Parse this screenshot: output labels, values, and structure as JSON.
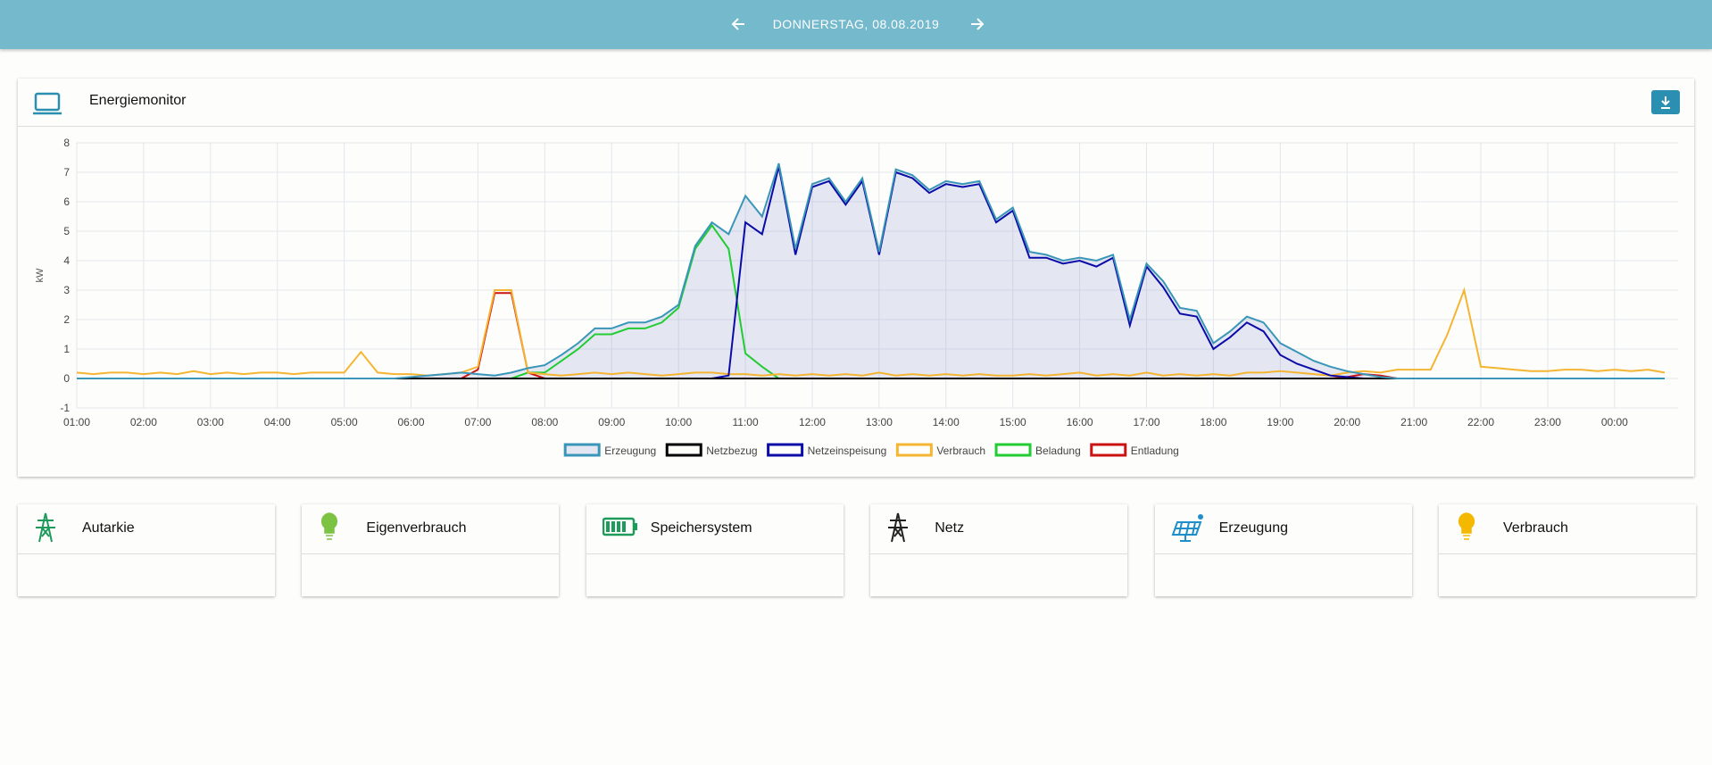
{
  "header": {
    "date": "DONNERSTAG, 08.08.2019"
  },
  "monitor": {
    "title": "Energiemonitor"
  },
  "chart_data": {
    "type": "line",
    "ylabel": "kW",
    "grid": true,
    "xlim": [
      1,
      24.95
    ],
    "ylim": [
      -1,
      8
    ],
    "yticks": [
      -1,
      0,
      1,
      2,
      3,
      4,
      5,
      6,
      7,
      8
    ],
    "xticks": [
      {
        "value": 1,
        "label": "01:00"
      },
      {
        "value": 2,
        "label": "02:00"
      },
      {
        "value": 3,
        "label": "03:00"
      },
      {
        "value": 4,
        "label": "04:00"
      },
      {
        "value": 5,
        "label": "05:00"
      },
      {
        "value": 6,
        "label": "06:00"
      },
      {
        "value": 7,
        "label": "07:00"
      },
      {
        "value": 8,
        "label": "08:00"
      },
      {
        "value": 9,
        "label": "09:00"
      },
      {
        "value": 10,
        "label": "10:00"
      },
      {
        "value": 11,
        "label": "11:00"
      },
      {
        "value": 12,
        "label": "12:00"
      },
      {
        "value": 13,
        "label": "13:00"
      },
      {
        "value": 14,
        "label": "14:00"
      },
      {
        "value": 15,
        "label": "15:00"
      },
      {
        "value": 16,
        "label": "16:00"
      },
      {
        "value": 17,
        "label": "17:00"
      },
      {
        "value": 18,
        "label": "18:00"
      },
      {
        "value": 19,
        "label": "19:00"
      },
      {
        "value": 20,
        "label": "20:00"
      },
      {
        "value": 21,
        "label": "21:00"
      },
      {
        "value": 22,
        "label": "22:00"
      },
      {
        "value": 23,
        "label": "23:00"
      },
      {
        "value": 24,
        "label": "00:00"
      }
    ],
    "x": [
      1,
      1.25,
      1.5,
      1.75,
      2,
      2.25,
      2.5,
      2.75,
      3,
      3.25,
      3.5,
      3.75,
      4,
      4.25,
      4.5,
      4.75,
      5,
      5.25,
      5.5,
      5.75,
      6,
      6.25,
      6.5,
      6.75,
      7,
      7.25,
      7.5,
      7.75,
      8,
      8.25,
      8.5,
      8.75,
      9,
      9.25,
      9.5,
      9.75,
      10,
      10.25,
      10.5,
      10.75,
      11,
      11.25,
      11.5,
      11.75,
      12,
      12.25,
      12.5,
      12.75,
      13,
      13.25,
      13.5,
      13.75,
      14,
      14.25,
      14.5,
      14.75,
      15,
      15.25,
      15.5,
      15.75,
      16,
      16.25,
      16.5,
      16.75,
      17,
      17.25,
      17.5,
      17.75,
      18,
      18.25,
      18.5,
      18.75,
      19,
      19.25,
      19.5,
      19.75,
      20,
      20.25,
      20.5,
      20.75,
      21,
      21.25,
      21.5,
      21.75,
      22,
      22.25,
      22.5,
      22.75,
      23,
      23.25,
      23.5,
      23.75,
      24,
      24.25,
      24.5,
      24.75
    ],
    "series": [
      {
        "name": "Erzeugung",
        "color": "#3a96b8",
        "fill": "rgba(90,110,190,0.15)",
        "values": [
          0,
          0,
          0,
          0,
          0,
          0,
          0,
          0,
          0,
          0,
          0,
          0,
          0,
          0,
          0,
          0,
          0,
          0,
          0,
          0,
          0.05,
          0.1,
          0.15,
          0.2,
          0.15,
          0.1,
          0.2,
          0.35,
          0.45,
          0.8,
          1.2,
          1.7,
          1.7,
          1.9,
          1.9,
          2.1,
          2.5,
          4.5,
          5.3,
          4.9,
          6.2,
          5.5,
          7.3,
          4.4,
          6.6,
          6.8,
          6.0,
          6.8,
          4.3,
          7.1,
          6.9,
          6.4,
          6.7,
          6.6,
          6.7,
          5.4,
          5.8,
          4.3,
          4.2,
          4.0,
          4.1,
          4.0,
          4.2,
          2.0,
          3.9,
          3.3,
          2.4,
          2.3,
          1.2,
          1.6,
          2.1,
          1.9,
          1.2,
          0.9,
          0.6,
          0.4,
          0.25,
          0.15,
          0.05,
          0,
          0,
          0,
          0,
          0,
          0,
          0,
          0,
          0,
          0,
          0,
          0,
          0,
          0,
          0,
          0,
          0
        ]
      },
      {
        "name": "Netzbezug",
        "color": "#000000",
        "values": [
          0,
          0,
          0,
          0,
          0,
          0,
          0,
          0,
          0,
          0,
          0,
          0,
          0,
          0,
          0,
          0,
          0,
          0,
          0,
          0,
          0,
          0,
          0,
          0,
          0,
          0,
          0,
          0,
          0,
          0,
          0,
          0,
          0,
          0,
          0,
          0,
          0,
          0,
          0,
          0,
          0,
          0,
          0,
          0,
          0,
          0,
          0,
          0,
          0,
          0,
          0,
          0,
          0,
          0,
          0,
          0,
          0,
          0,
          0,
          0,
          0,
          0,
          0,
          0,
          0,
          0,
          0,
          0,
          0,
          0,
          0,
          0,
          0,
          0,
          0,
          0,
          0,
          0,
          0,
          0,
          0,
          0,
          0,
          0,
          0,
          0,
          0,
          0,
          0,
          0,
          0,
          0,
          0,
          0,
          0,
          0
        ]
      },
      {
        "name": "Netzeinspeisung",
        "color": "#0b0ba8",
        "values": [
          0,
          0,
          0,
          0,
          0,
          0,
          0,
          0,
          0,
          0,
          0,
          0,
          0,
          0,
          0,
          0,
          0,
          0,
          0,
          0,
          0,
          0,
          0,
          0,
          0,
          0,
          0,
          0,
          0,
          0,
          0,
          0,
          0,
          0,
          0,
          0,
          0,
          0,
          0,
          0.1,
          5.3,
          4.9,
          7.2,
          4.2,
          6.5,
          6.7,
          5.9,
          6.7,
          4.2,
          7.0,
          6.8,
          6.3,
          6.6,
          6.5,
          6.6,
          5.3,
          5.7,
          4.1,
          4.1,
          3.9,
          4.0,
          3.8,
          4.1,
          1.8,
          3.8,
          3.1,
          2.2,
          2.1,
          1.0,
          1.4,
          1.9,
          1.6,
          0.8,
          0.5,
          0.3,
          0.1,
          0.05,
          0,
          0,
          0,
          0,
          0,
          0,
          0,
          0,
          0,
          0,
          0,
          0,
          0,
          0,
          0,
          0,
          0,
          0,
          0
        ]
      },
      {
        "name": "Verbrauch",
        "color": "#f5b532",
        "values": [
          0.2,
          0.15,
          0.2,
          0.2,
          0.15,
          0.2,
          0.15,
          0.25,
          0.15,
          0.2,
          0.15,
          0.2,
          0.2,
          0.15,
          0.2,
          0.2,
          0.2,
          0.9,
          0.2,
          0.15,
          0.15,
          0.1,
          0.15,
          0.2,
          0.4,
          3.0,
          3.0,
          0.2,
          0.15,
          0.1,
          0.15,
          0.2,
          0.15,
          0.2,
          0.15,
          0.1,
          0.15,
          0.2,
          0.2,
          0.15,
          0.15,
          0.1,
          0.15,
          0.1,
          0.15,
          0.1,
          0.15,
          0.1,
          0.2,
          0.1,
          0.15,
          0.1,
          0.15,
          0.1,
          0.15,
          0.1,
          0.1,
          0.15,
          0.1,
          0.15,
          0.2,
          0.1,
          0.15,
          0.1,
          0.2,
          0.1,
          0.15,
          0.1,
          0.15,
          0.1,
          0.2,
          0.2,
          0.25,
          0.2,
          0.15,
          0.1,
          0.2,
          0.25,
          0.2,
          0.3,
          0.3,
          0.3,
          1.5,
          3.0,
          0.4,
          0.35,
          0.3,
          0.25,
          0.25,
          0.3,
          0.3,
          0.25,
          0.3,
          0.25,
          0.3,
          0.2
        ]
      },
      {
        "name": "Beladung",
        "color": "#22cc33",
        "values": [
          0,
          0,
          0,
          0,
          0,
          0,
          0,
          0,
          0,
          0,
          0,
          0,
          0,
          0,
          0,
          0,
          0,
          0,
          0,
          0,
          0,
          0,
          0,
          0,
          0,
          0,
          0,
          0.2,
          0.2,
          0.6,
          1.0,
          1.5,
          1.5,
          1.7,
          1.7,
          1.9,
          2.4,
          4.4,
          5.2,
          4.4,
          0.85,
          0.4,
          0,
          0,
          0,
          0,
          0,
          0,
          0,
          0,
          0,
          0,
          0,
          0,
          0,
          0,
          0,
          0,
          0,
          0,
          0,
          0,
          0,
          0,
          0,
          0,
          0,
          0,
          0,
          0,
          0,
          0,
          0,
          0,
          0,
          0,
          0,
          0,
          0,
          0,
          0,
          0,
          0,
          0,
          0,
          0,
          0,
          0,
          0,
          0,
          0,
          0,
          0,
          0,
          0,
          0
        ]
      },
      {
        "name": "Entladung",
        "color": "#cc1111",
        "values": [
          0,
          0,
          0,
          0,
          0,
          0,
          0,
          0,
          0,
          0,
          0,
          0,
          0,
          0,
          0,
          0,
          0,
          0,
          0,
          0,
          0,
          0,
          0,
          0,
          0.3,
          2.9,
          2.9,
          0.2,
          0,
          0,
          0,
          0,
          0,
          0,
          0,
          0,
          0,
          0,
          0,
          0,
          0,
          0,
          0,
          0,
          0,
          0,
          0,
          0,
          0,
          0,
          0,
          0,
          0,
          0,
          0,
          0,
          0,
          0,
          0,
          0,
          0,
          0,
          0,
          0,
          0,
          0,
          0,
          0,
          0,
          0,
          0,
          0,
          0,
          0,
          0,
          0,
          0.05,
          0.15,
          0.1,
          0,
          0,
          0,
          0,
          0,
          0,
          0,
          0,
          0,
          0,
          0,
          0,
          0,
          0,
          0,
          0,
          0
        ]
      }
    ]
  },
  "tiles": [
    {
      "title": "Autarkie"
    },
    {
      "title": "Eigenverbrauch"
    },
    {
      "title": "Speichersystem"
    },
    {
      "title": "Netz"
    },
    {
      "title": "Erzeugung"
    },
    {
      "title": "Verbrauch"
    }
  ]
}
